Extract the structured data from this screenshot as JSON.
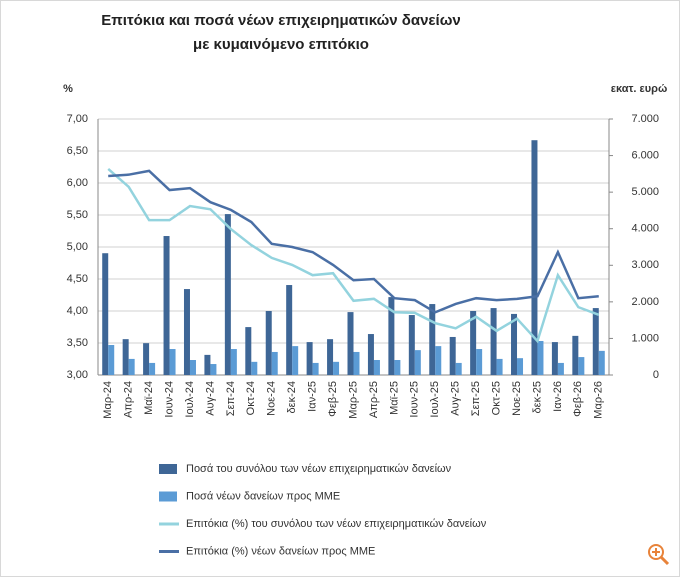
{
  "chart_data": {
    "type": "bar",
    "title": "Επιτόκια και ποσά νέων επιχειρηματικών δανείων με κυμαινόμενο επιτόκιο",
    "y_label": "%",
    "y2_label": "εκατ. ευρώ",
    "categories": [
      "Μαρ-24",
      "Απρ-24",
      "Μαϊ-24",
      "Ιουν-24",
      "Ιουλ-24",
      "Αυγ-24",
      "Σεπ-24",
      "Οκτ-24",
      "Νοε-24",
      "δεκ-24",
      "Ιαν-25",
      "Φεβ-25",
      "Μαρ-25",
      "Απρ-25",
      "Μαϊ-25",
      "Ιουν-25",
      "Ιουλ-25",
      "Αυγ-25",
      "Σεπ-25",
      "Οκτ-25",
      "Νοε-25",
      "δεκ-25",
      "Ιαν-26",
      "Φεβ-26",
      "Μαρ-26"
    ],
    "ylim": [
      3,
      7
    ],
    "yticks": [
      {
        "value": 3,
        "label": "3,00"
      },
      {
        "value": 3.5,
        "label": "3,50"
      },
      {
        "value": 4,
        "label": "4,00"
      },
      {
        "value": 4.5,
        "label": "4,50"
      },
      {
        "value": 5,
        "label": "5,00"
      },
      {
        "value": 5.5,
        "label": "5,50"
      },
      {
        "value": 6,
        "label": "6,00"
      },
      {
        "value": 6.5,
        "label": "6,50"
      },
      {
        "value": 7,
        "label": "7,00"
      }
    ],
    "y2lim": [
      0,
      7000
    ],
    "y2ticks": [
      0,
      {
        "value": 1000,
        "label": "1.000"
      },
      {
        "value": 2000,
        "label": "2.000"
      },
      {
        "value": 3000,
        "label": "3.000"
      },
      {
        "value": 4000,
        "label": "4.000"
      },
      {
        "value": 5000,
        "label": "5.000"
      },
      {
        "value": 6000,
        "label": "6.000"
      },
      {
        "value": 7000,
        "label": "7.000"
      }
    ],
    "grid": true,
    "series": [
      {
        "name": "Ποσά του συνόλου των νέων επιχειρηματικών δανείων",
        "type": "bar",
        "axis": "y2",
        "color": "#3e6696",
        "values": [
          3330,
          980,
          870,
          3800,
          2350,
          550,
          4400,
          1310,
          1750,
          2460,
          900,
          980,
          1720,
          1120,
          2130,
          1640,
          1940,
          1040,
          1750,
          1830,
          1670,
          6420,
          900,
          1070,
          1830
        ]
      },
      {
        "name": "Ποσά νέων δανείων προς ΜΜΕ",
        "type": "bar",
        "axis": "y2",
        "color": "#5b9bd5",
        "values": [
          820,
          440,
          330,
          710,
          410,
          300,
          710,
          360,
          630,
          790,
          330,
          360,
          630,
          410,
          410,
          680,
          790,
          330,
          710,
          440,
          460,
          930,
          330,
          490,
          660
        ]
      },
      {
        "name": "Επιτόκια (%) του συνόλου των νέων επιχειρηματικών δανείων",
        "type": "line",
        "color": "#93d3de",
        "values": [
          6.22,
          5.94,
          5.42,
          5.42,
          5.64,
          5.59,
          5.28,
          5.03,
          4.83,
          4.72,
          4.56,
          4.59,
          4.16,
          4.19,
          3.98,
          3.97,
          3.81,
          3.73,
          3.91,
          3.69,
          3.88,
          3.53,
          4.56,
          4.06,
          3.94
        ]
      },
      {
        "name": "Επιτόκια (%) νέων δανείων προς ΜΜΕ",
        "type": "line",
        "color": "#4a6fa5",
        "values": [
          6.11,
          6.13,
          6.19,
          5.89,
          5.92,
          5.7,
          5.58,
          5.39,
          5.05,
          5.0,
          4.92,
          4.72,
          4.48,
          4.5,
          4.2,
          4.17,
          3.98,
          4.11,
          4.2,
          4.17,
          4.19,
          4.23,
          4.92,
          4.2,
          4.23
        ]
      }
    ]
  }
}
